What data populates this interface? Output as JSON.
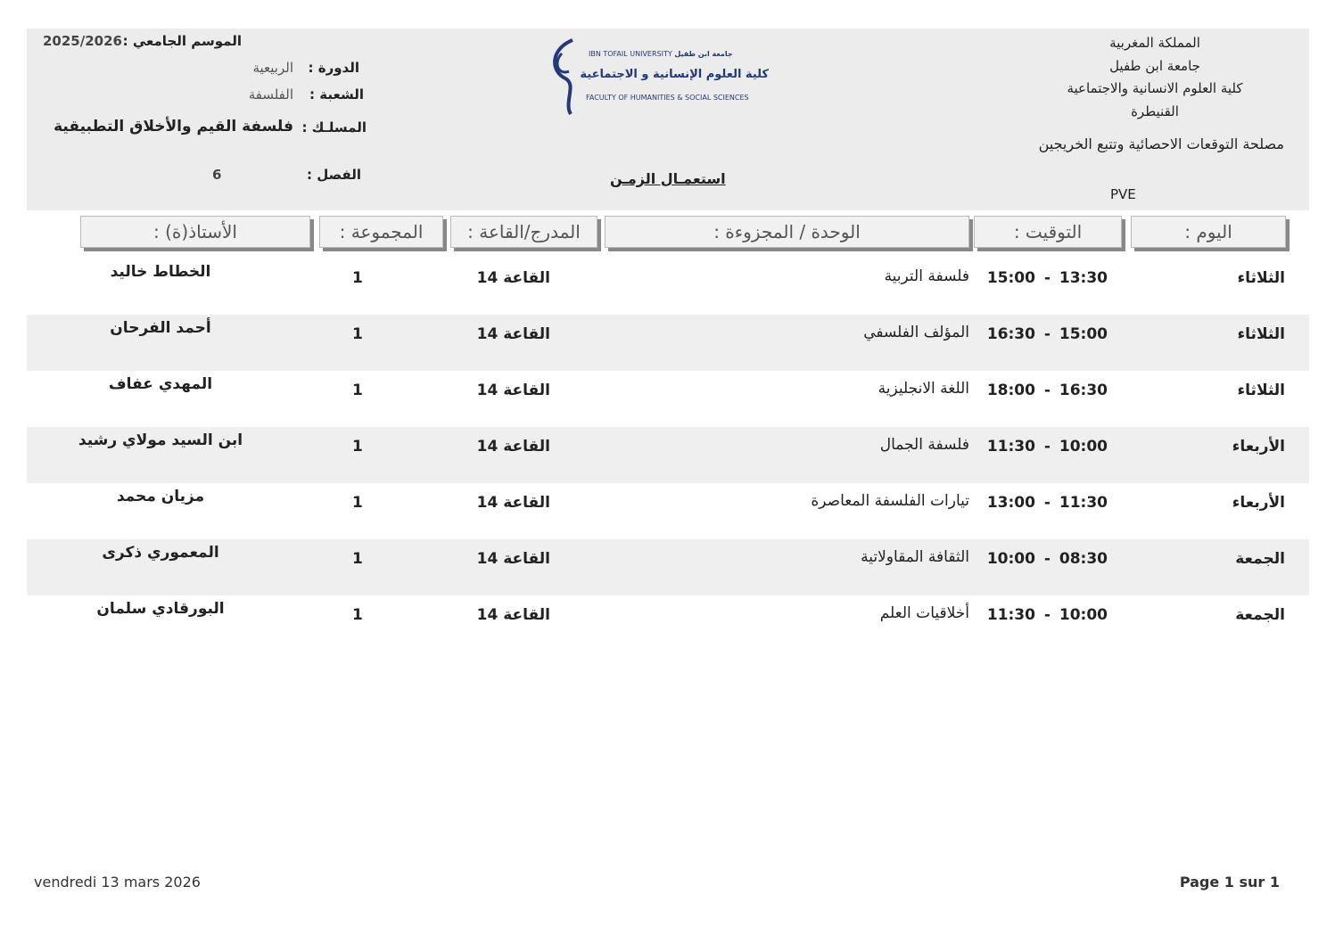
{
  "header_right": {
    "line1": "المملكة المغربية",
    "line2": "جامعة ابن طفيل",
    "line3": "كلية العلوم الانسانية والاجتماعية",
    "line4": "القنيطرة",
    "service": "مصلحة التوقعات الاحصائية وتتبع الخريجين",
    "code": "PVE"
  },
  "logo": {
    "en1": "IBN TOFAIL UNIVERSITY",
    "ar1": "جامعة ابن طفيل",
    "ar2": "كلية العلوم الإنسانية و الاجتماعية",
    "en2": "FACULTY OF HUMANITIES & SOCIAL SCIENCES"
  },
  "title": "استعمـال الزمـن",
  "header_left": {
    "season_label": "الموسم الجامعي :",
    "season": "2025/2026",
    "session_label": "الدورة :",
    "session": "الربيعية",
    "branch_label": "الشعبة :",
    "branch": "الفلسفة",
    "track_label": "المسلـك :",
    "track": "فلسفة القيم والأخلاق التطبيقية",
    "semester_label": "الفصل :",
    "semester": "6"
  },
  "columns": {
    "day": "اليوم :",
    "time": "التوقيت :",
    "module": "الوحدة / المجزوءة :",
    "room": "المدرج/القاعة :",
    "group": "المجموعة :",
    "teacher": "الأستاذ(ة) :"
  },
  "rows": [
    {
      "day": "الثلاثاء",
      "time": "13:30 - 15:00",
      "module": "فلسفة التربية",
      "room": "القاعة 14",
      "group": "1",
      "teacher": "الخطاط خاليد"
    },
    {
      "day": "الثلاثاء",
      "time": "15:00 - 16:30",
      "module": "المؤلف الفلسفي",
      "room": "القاعة 14",
      "group": "1",
      "teacher": "أحمد الفرحان"
    },
    {
      "day": "الثلاثاء",
      "time": "16:30 - 18:00",
      "module": "اللغة الانجليزية",
      "room": "القاعة 14",
      "group": "1",
      "teacher": "المهدي عفاف"
    },
    {
      "day": "الأربعاء",
      "time": "10:00 - 11:30",
      "module": "فلسفة الجمال",
      "room": "القاعة 14",
      "group": "1",
      "teacher": "ابن السيد مولاي رشيد"
    },
    {
      "day": "الأربعاء",
      "time": "11:30 - 13:00",
      "module": "تيارات الفلسفة المعاصرة",
      "room": "القاعة 14",
      "group": "1",
      "teacher": "مزيان محمد"
    },
    {
      "day": "الجمعة",
      "time": "08:30 - 10:00",
      "module": "الثقافة المقاولاتية",
      "room": "القاعة 14",
      "group": "1",
      "teacher": "المعموري ذكرى"
    },
    {
      "day": "الجمعة",
      "time": "10:00 - 11:30",
      "module": "أخلاقيات العلم",
      "room": "القاعة 14",
      "group": "1",
      "teacher": "البورقادي سلمان"
    }
  ],
  "footer": {
    "date": "vendredi 13 mars 2026",
    "page": "Page 1 sur 1"
  }
}
